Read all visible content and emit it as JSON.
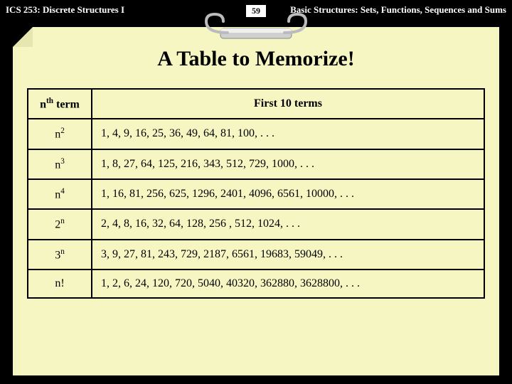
{
  "header": {
    "course": "ICS 253: Discrete Structures I",
    "page_number": "59",
    "chapter": "Basic Structures: Sets, Functions, Sequences and Sums"
  },
  "slide": {
    "title": "A Table to Memorize!",
    "background_color": "#f6f6c3",
    "table": {
      "header_term": "n",
      "header_term_sup": "th",
      "header_term_suffix": " term",
      "header_values": "First 10 terms",
      "rows": [
        {
          "base": "n",
          "exp": "2",
          "values": "1, 4, 9, 16, 25, 36, 49, 64, 81, 100, . . ."
        },
        {
          "base": "n",
          "exp": "3",
          "values": "1, 8, 27, 64, 125, 216, 343, 512, 729, 1000, . . ."
        },
        {
          "base": "n",
          "exp": "4",
          "values": "1, 16, 81, 256, 625, 1296, 2401, 4096, 6561, 10000, . . ."
        },
        {
          "base": "2",
          "exp": "n",
          "values": "2, 4, 8, 16, 32, 64, 128, 256 , 512, 1024, . . ."
        },
        {
          "base": "3",
          "exp": "n",
          "values": "3, 9, 27, 81, 243, 729, 2187, 6561, 19683, 59049, . . ."
        },
        {
          "base": "n!",
          "exp": "",
          "values": "1, 2, 6, 24, 120, 720, 5040, 40320, 362880, 3628800, . . ."
        }
      ]
    }
  },
  "colors": {
    "page_bg": "#000000",
    "slide_bg": "#f6f6c3",
    "text": "#000000",
    "header_text": "#ffffff"
  }
}
